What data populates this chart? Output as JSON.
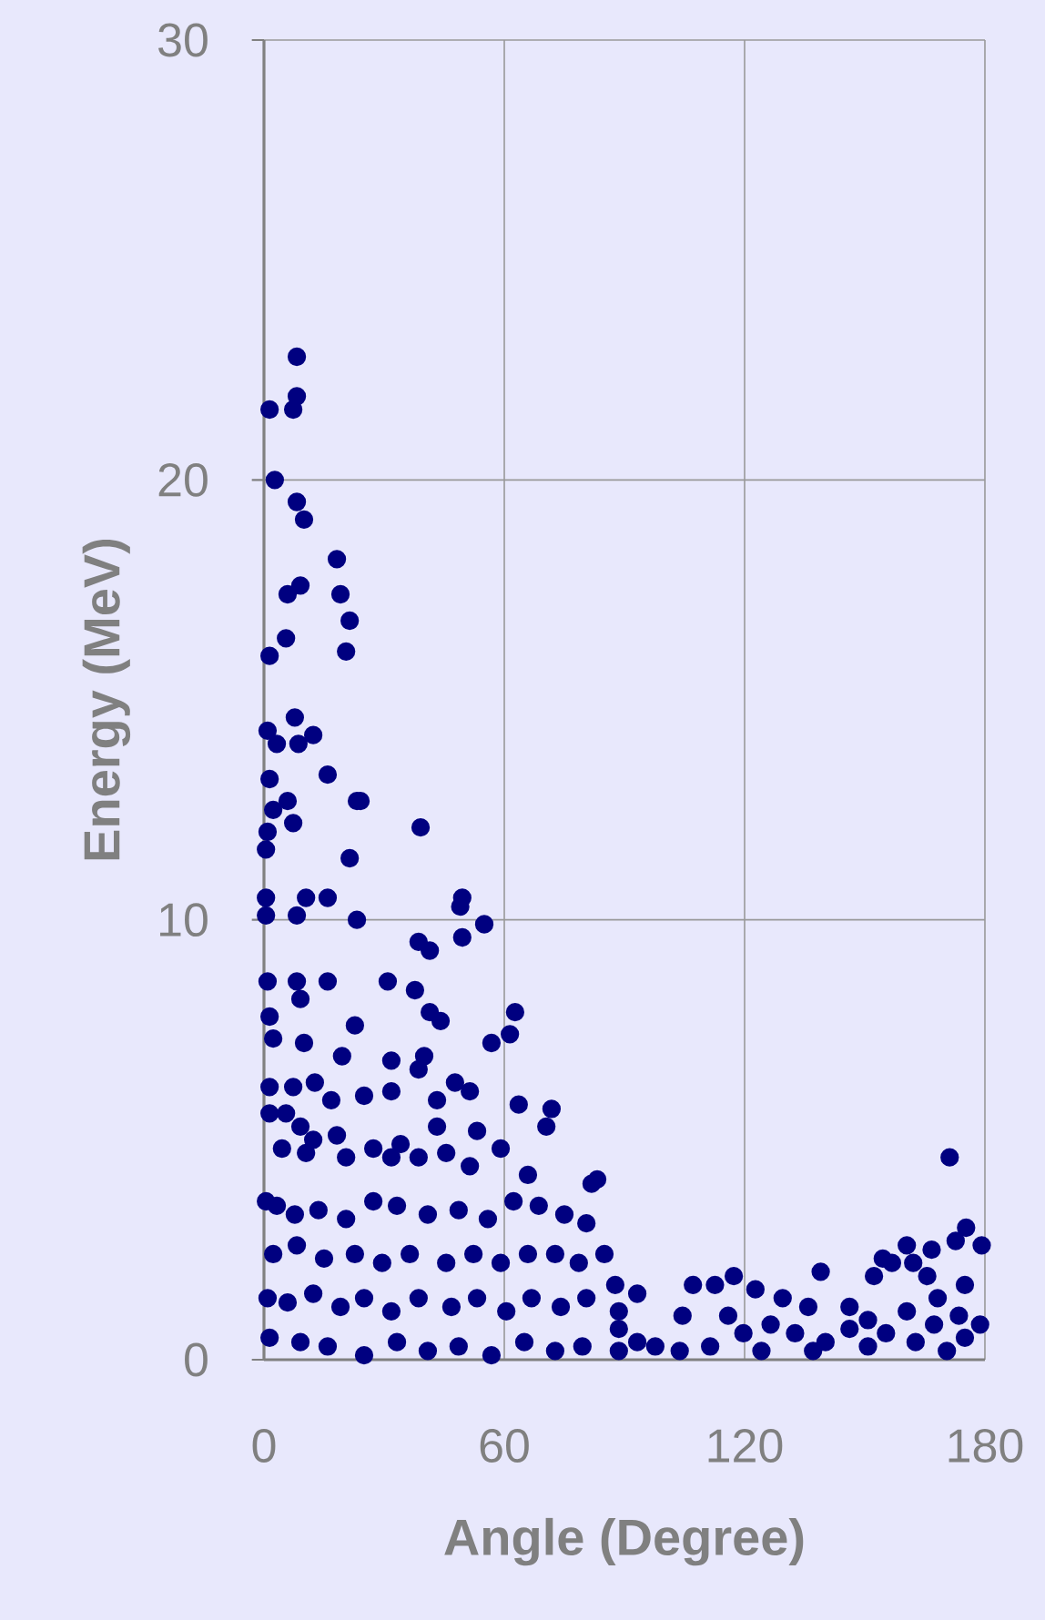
{
  "chart_data": {
    "type": "scatter",
    "xlabel": "Angle (Degree)",
    "ylabel": "Energy (MeV)",
    "color": "#000080",
    "marker": "circle",
    "grid": true,
    "xlim": [
      0,
      180
    ],
    "ylim": [
      0,
      30
    ],
    "xticks": [
      0,
      60,
      120,
      180
    ],
    "yticks": [
      0,
      10,
      20,
      30
    ],
    "x": [
      1.4,
      8.2,
      8.2,
      7.3,
      2.7,
      8.2,
      10,
      18.2,
      19.1,
      21.4,
      20.5,
      5.9,
      9.1,
      5.5,
      1.4,
      7.7,
      0.9,
      3.2,
      8.6,
      12.3,
      15.9,
      1.4,
      2.3,
      5.9,
      7.3,
      23.2,
      24.1,
      0.9,
      0.5,
      39.1,
      21.4,
      0.5,
      10.5,
      15.9,
      0.5,
      8.2,
      23.2,
      49.5,
      55,
      49,
      38.6,
      41.4,
      49.5,
      0.9,
      8.2,
      15.9,
      30.9,
      37.7,
      1.4,
      9.1,
      22.7,
      41.4,
      44.1,
      62.7,
      61.4,
      2.3,
      10,
      19.5,
      31.8,
      40,
      56.8,
      38.6,
      1.4,
      7.3,
      12.7,
      16.8,
      25,
      31.8,
      43.2,
      47.7,
      51.4,
      63.6,
      71.8,
      70.5,
      1.4,
      5.5,
      9.1,
      12.3,
      18.2,
      27.3,
      34.1,
      43.2,
      53.2,
      59.1,
      4.5,
      10.5,
      20.5,
      31.8,
      38.6,
      45.5,
      51.4,
      65.9,
      81.8,
      83.2,
      0.5,
      3.2,
      7.7,
      13.6,
      20.5,
      27.3,
      33.2,
      40.9,
      48.6,
      55.9,
      62.3,
      68.6,
      75,
      80.5,
      2.3,
      8.2,
      15,
      22.7,
      29.5,
      36.4,
      45.5,
      52.3,
      59.1,
      65.9,
      72.7,
      78.6,
      85,
      87.7,
      0.9,
      5.9,
      12.3,
      19.1,
      25,
      31.8,
      38.6,
      46.8,
      53.2,
      60.5,
      66.8,
      74.1,
      80.5,
      88.6,
      1.4,
      9.1,
      15.9,
      25,
      33.2,
      40.9,
      48.6,
      56.8,
      65,
      72.7,
      79.5,
      88.6,
      93.2,
      107.1,
      117.3,
      112.6,
      122.7,
      129.5,
      139,
      135.9,
      152.3,
      154.5,
      156.8,
      160.5,
      162.1,
      166.7,
      165.6,
      171.2,
      172.7,
      175.3,
      179.2,
      175,
      168.2,
      160.5,
      178.8,
      173.5,
      170.5,
      162.7,
      155.3,
      150.8,
      146.2,
      146.2,
      140.2,
      137.1,
      132.6,
      126.5,
      124.2,
      119.7,
      115.9,
      111.4,
      104.5,
      103.8,
      97.7,
      93.2,
      88.6,
      150.8,
      175,
      167.3
    ],
    "values": [
      21.6,
      22.8,
      21.9,
      21.6,
      20.0,
      19.5,
      19.1,
      18.2,
      17.4,
      16.8,
      16.1,
      17.4,
      17.6,
      16.4,
      16.0,
      14.6,
      14.3,
      14.0,
      14.0,
      14.2,
      13.3,
      13.2,
      12.5,
      12.7,
      12.2,
      12.7,
      12.7,
      12.0,
      11.6,
      12.1,
      11.4,
      10.5,
      10.5,
      10.5,
      10.1,
      10.1,
      10.0,
      10.5,
      9.9,
      10.3,
      9.5,
      9.3,
      9.6,
      8.6,
      8.6,
      8.6,
      8.6,
      8.4,
      7.8,
      8.2,
      7.6,
      7.9,
      7.7,
      7.9,
      7.4,
      7.3,
      7.2,
      6.9,
      6.8,
      6.9,
      7.2,
      6.6,
      6.2,
      6.2,
      6.3,
      5.9,
      6.0,
      6.1,
      5.9,
      6.3,
      6.1,
      5.8,
      5.7,
      5.3,
      5.6,
      5.6,
      5.3,
      5.0,
      5.1,
      4.8,
      4.9,
      5.3,
      5.2,
      4.8,
      4.8,
      4.7,
      4.6,
      4.6,
      4.6,
      4.7,
      4.4,
      4.2,
      4.0,
      4.1,
      3.6,
      3.5,
      3.3,
      3.4,
      3.2,
      3.6,
      3.5,
      3.3,
      3.4,
      3.2,
      3.6,
      3.5,
      3.3,
      3.1,
      2.4,
      2.6,
      2.3,
      2.4,
      2.2,
      2.4,
      2.2,
      2.4,
      2.2,
      2.4,
      2.4,
      2.2,
      2.4,
      1.7,
      1.4,
      1.3,
      1.5,
      1.2,
      1.4,
      1.1,
      1.4,
      1.2,
      1.4,
      1.1,
      1.4,
      1.2,
      1.4,
      1.1,
      0.5,
      0.4,
      0.3,
      0.1,
      0.4,
      0.2,
      0.3,
      0.1,
      0.4,
      0.2,
      0.3,
      0.2,
      1.5,
      1.7,
      1.9,
      1.7,
      1.6,
      1.4,
      2.0,
      1.2,
      1.9,
      2.3,
      2.2,
      2.6,
      2.2,
      2.5,
      1.9,
      4.6,
      2.7,
      3.0,
      2.6,
      1.7,
      1.4,
      1.1,
      0.8,
      1.0,
      0.2,
      0.4,
      0.6,
      0.3,
      1.2,
      0.7,
      0.4,
      0.2,
      0.6,
      0.8,
      0.2,
      0.6,
      1.0,
      0.3,
      1.0,
      0.2,
      0.3,
      0.4,
      0.7,
      0.9,
      0.5,
      0.8
    ]
  }
}
